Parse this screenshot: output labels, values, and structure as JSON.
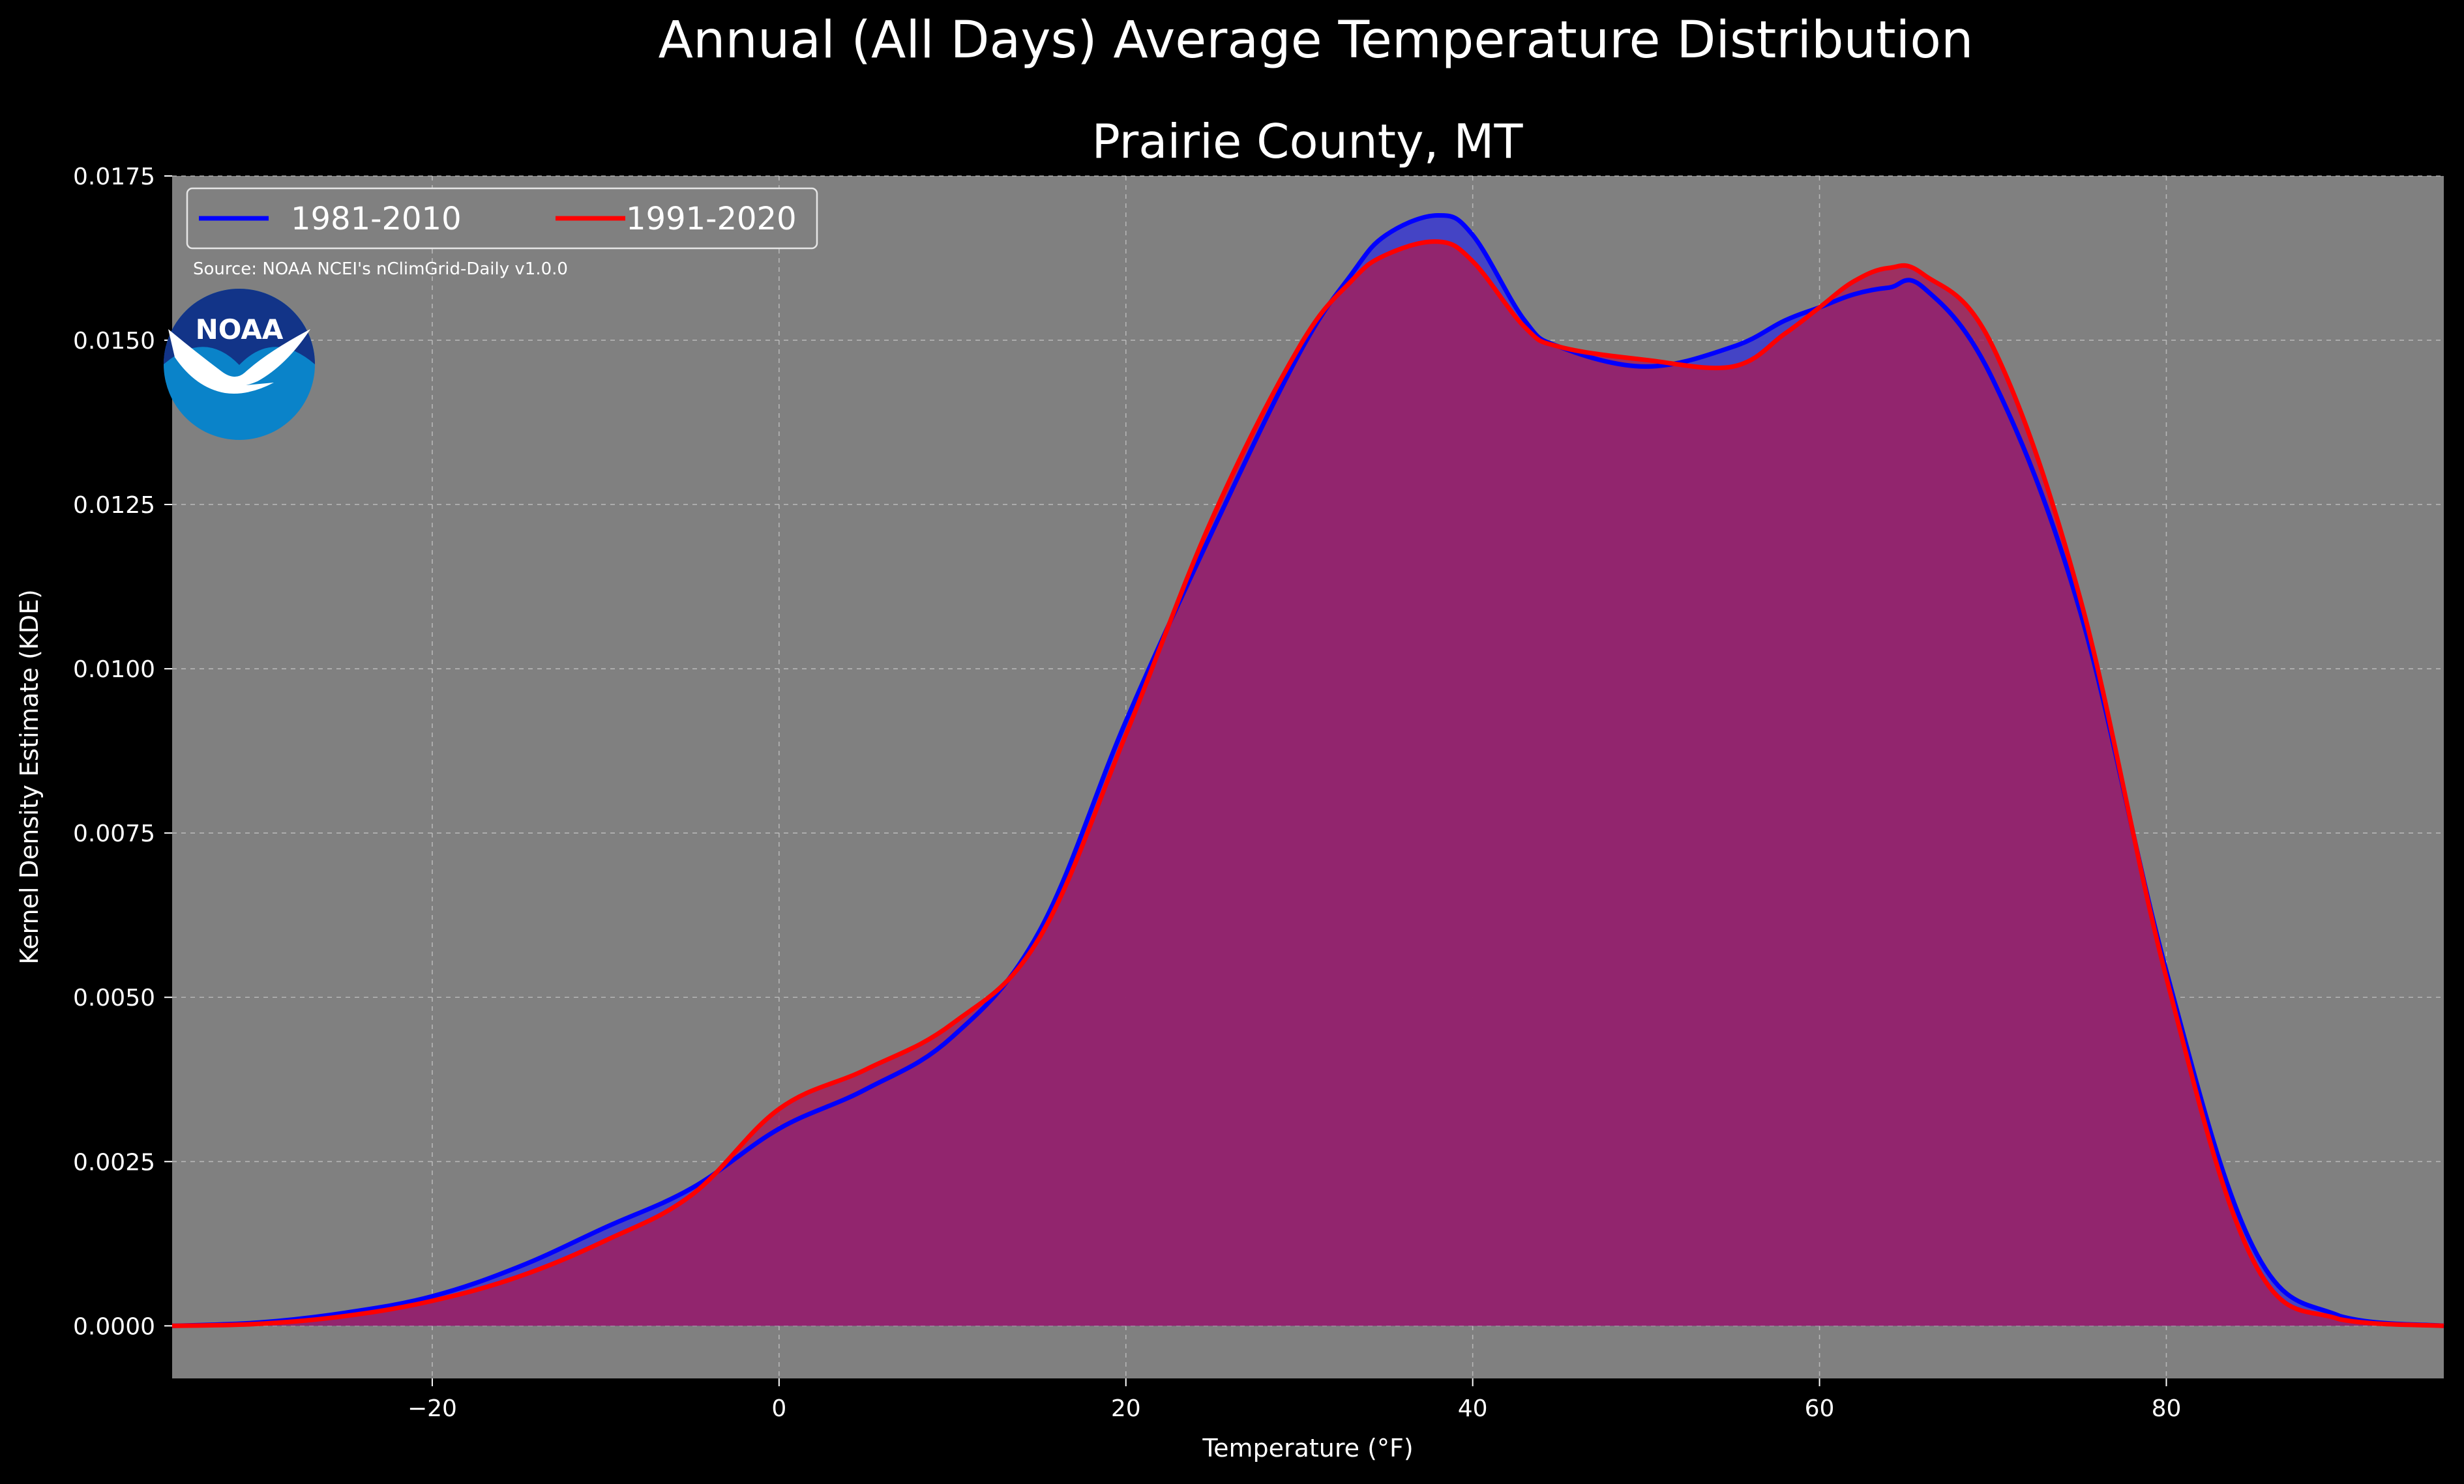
{
  "chart_data": {
    "type": "area",
    "title": "Annual (All Days) Average Temperature Distribution",
    "subtitle": "Prairie County, MT",
    "xlabel": "Temperature (°F)",
    "ylabel": "Kernel Density Estimate (KDE)",
    "xlim": [
      -35,
      96
    ],
    "ylim": [
      -0.0008,
      0.0175
    ],
    "xticks": [
      -20,
      0,
      20,
      40,
      60,
      80
    ],
    "xtick_labels": [
      "−20",
      "0",
      "20",
      "40",
      "60",
      "80"
    ],
    "yticks": [
      0.0,
      0.0025,
      0.005,
      0.0075,
      0.01,
      0.0125,
      0.015,
      0.0175
    ],
    "ytick_labels": [
      "0.0000",
      "0.0025",
      "0.0050",
      "0.0075",
      "0.0100",
      "0.0125",
      "0.0150",
      "0.0175"
    ],
    "grid": true,
    "legend_position": "top-left",
    "annotation": "Source: NOAA NCEI's nClimGrid-Daily v1.0.0",
    "logo_text": "NOAA",
    "x": [
      -35,
      -30,
      -25,
      -20,
      -15,
      -10,
      -5,
      0,
      5,
      10,
      15,
      20,
      25,
      30,
      33,
      35,
      38,
      40,
      43,
      45,
      50,
      55,
      58,
      60,
      62,
      64,
      66,
      70,
      75,
      80,
      85,
      90,
      96
    ],
    "series": [
      {
        "name": "1981-2010",
        "color": "#0000ff",
        "fill": "#4040c8",
        "values": [
          0.0,
          5e-05,
          0.0002,
          0.00045,
          0.0009,
          0.0015,
          0.0021,
          0.003,
          0.0036,
          0.0044,
          0.006,
          0.0092,
          0.0121,
          0.0148,
          0.016,
          0.0166,
          0.0169,
          0.0166,
          0.0153,
          0.0149,
          0.0146,
          0.0149,
          0.0153,
          0.0155,
          0.0157,
          0.0158,
          0.0158,
          0.0144,
          0.0109,
          0.0054,
          0.0012,
          0.00015,
          0.0
        ]
      },
      {
        "name": "1991-2020",
        "color": "#ff0000",
        "fill": "#a31f5a",
        "values": [
          0.0,
          3e-05,
          0.00015,
          0.00038,
          0.00075,
          0.0013,
          0.002,
          0.0033,
          0.0039,
          0.0046,
          0.0059,
          0.009,
          0.0123,
          0.0149,
          0.0159,
          0.0163,
          0.0165,
          0.0162,
          0.0152,
          0.0149,
          0.0147,
          0.0146,
          0.0151,
          0.0155,
          0.0159,
          0.0161,
          0.016,
          0.0149,
          0.0111,
          0.0053,
          0.001,
          0.0001,
          0.0
        ]
      }
    ]
  }
}
